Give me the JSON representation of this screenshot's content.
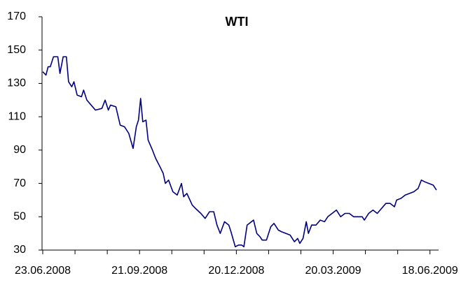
{
  "chart_data": {
    "type": "line",
    "title": "WTI",
    "color": "#000080",
    "ylim": [
      30,
      170
    ],
    "yticks": [
      30,
      50,
      70,
      90,
      110,
      130,
      150,
      170
    ],
    "xlim": [
      "2008-06-23",
      "2009-06-26"
    ],
    "xticks": [
      {
        "value": "2008-06-23",
        "label": "23.06.2008"
      },
      {
        "value": "2008-09-21",
        "label": "21.09.2008"
      },
      {
        "value": "2008-12-20",
        "label": "20.12.2008"
      },
      {
        "value": "2009-03-20",
        "label": "20.03.2009"
      },
      {
        "value": "2009-06-18",
        "label": "18.06.2009"
      }
    ],
    "xminor_ticks": [
      "2008-07-23",
      "2008-08-22",
      "2008-10-21",
      "2008-11-20",
      "2009-01-19",
      "2009-02-18",
      "2009-04-19",
      "2009-05-19"
    ],
    "x": [
      "2008-06-23",
      "2008-06-26",
      "2008-06-28",
      "2008-06-30",
      "2008-07-03",
      "2008-07-07",
      "2008-07-09",
      "2008-07-12",
      "2008-07-15",
      "2008-07-17",
      "2008-07-20",
      "2008-07-22",
      "2008-07-25",
      "2008-07-29",
      "2008-07-31",
      "2008-08-03",
      "2008-08-07",
      "2008-08-11",
      "2008-08-17",
      "2008-08-20",
      "2008-08-23",
      "2008-08-25",
      "2008-08-30",
      "2008-09-03",
      "2008-09-07",
      "2008-09-11",
      "2008-09-15",
      "2008-09-18",
      "2008-09-20",
      "2008-09-22",
      "2008-09-24",
      "2008-09-27",
      "2008-09-29",
      "2008-10-03",
      "2008-10-06",
      "2008-10-10",
      "2008-10-13",
      "2008-10-15",
      "2008-10-18",
      "2008-10-22",
      "2008-10-26",
      "2008-10-30",
      "2008-11-01",
      "2008-11-04",
      "2008-11-09",
      "2008-11-12",
      "2008-11-17",
      "2008-11-21",
      "2008-11-25",
      "2008-11-29",
      "2008-12-02",
      "2008-12-05",
      "2008-12-09",
      "2008-12-13",
      "2008-12-15",
      "2008-12-19",
      "2008-12-22",
      "2008-12-25",
      "2008-12-27",
      "2008-12-30",
      "2009-01-01",
      "2009-01-05",
      "2009-01-08",
      "2009-01-11",
      "2009-01-13",
      "2009-01-17",
      "2009-01-21",
      "2009-01-24",
      "2009-01-28",
      "2009-01-31",
      "2009-02-04",
      "2009-02-08",
      "2009-02-12",
      "2009-02-15",
      "2009-02-17",
      "2009-02-20",
      "2009-02-23",
      "2009-02-25",
      "2009-02-28",
      "2009-03-04",
      "2009-03-08",
      "2009-03-12",
      "2009-03-15",
      "2009-03-19",
      "2009-03-23",
      "2009-03-27",
      "2009-03-31",
      "2009-04-04",
      "2009-04-08",
      "2009-04-12",
      "2009-04-16",
      "2009-04-18",
      "2009-04-22",
      "2009-04-26",
      "2009-04-30",
      "2009-05-04",
      "2009-05-08",
      "2009-05-12",
      "2009-05-16",
      "2009-05-18",
      "2009-05-22",
      "2009-05-26",
      "2009-05-30",
      "2009-06-03",
      "2009-06-07",
      "2009-06-10",
      "2009-06-13",
      "2009-06-17",
      "2009-06-21",
      "2009-06-24"
    ],
    "series": [
      {
        "name": "WTI",
        "color": "#000080",
        "values": [
          137,
          135,
          140,
          140,
          146,
          146,
          136,
          146,
          146,
          131,
          128,
          131,
          123,
          122,
          126,
          120,
          117,
          114,
          115,
          120,
          114,
          117,
          116,
          105,
          104,
          100,
          91,
          104,
          108,
          121,
          107,
          108,
          96,
          90,
          85,
          80,
          76,
          70,
          72,
          65,
          63,
          70,
          62,
          64,
          57,
          55,
          52,
          49,
          53,
          53,
          45,
          40,
          47,
          45,
          41,
          32,
          33,
          33,
          32,
          45,
          46,
          48,
          40,
          38,
          36,
          36,
          44,
          46,
          42,
          41,
          40,
          39,
          35,
          37,
          34,
          37,
          47,
          40,
          45,
          45,
          48,
          47,
          50,
          52,
          54,
          50,
          52,
          52,
          50,
          50,
          50,
          48,
          52,
          54,
          52,
          55,
          58,
          58,
          56,
          60,
          61,
          63,
          64,
          65,
          67,
          72,
          71,
          70,
          69,
          66
        ]
      }
    ]
  }
}
